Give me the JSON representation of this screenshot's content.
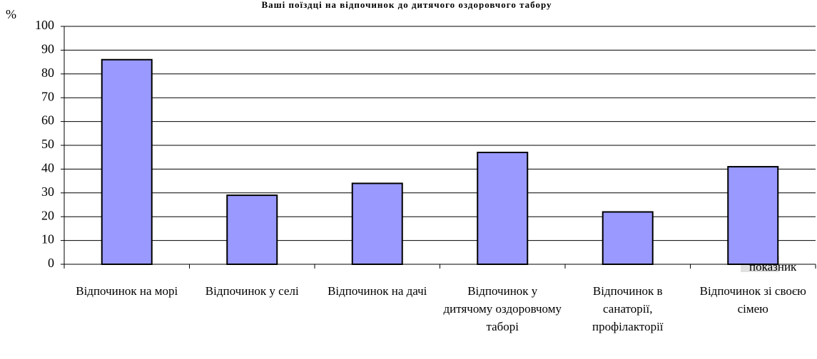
{
  "chart_data": {
    "type": "bar",
    "title": "Ваші поїздці на відпочинок до дитячого оздоровчого табору",
    "y_label": "%",
    "categories": [
      "Відпочинок на морі",
      "Відпочинок у селі",
      "Відпочинок на дачі",
      "Відпочинок у дитячому оздоровчому таборі",
      "Відпочинок в санаторії, профілакторії",
      "Відпочинок зі своєю сімею"
    ],
    "series": [
      {
        "name": "показник",
        "color": "#9999ff",
        "values": [
          86,
          29,
          34,
          47,
          22,
          41
        ]
      }
    ],
    "ylim": [
      0,
      100
    ],
    "yticks": [
      0,
      10,
      20,
      30,
      40,
      50,
      60,
      70,
      80,
      90,
      100
    ],
    "grid": true
  }
}
